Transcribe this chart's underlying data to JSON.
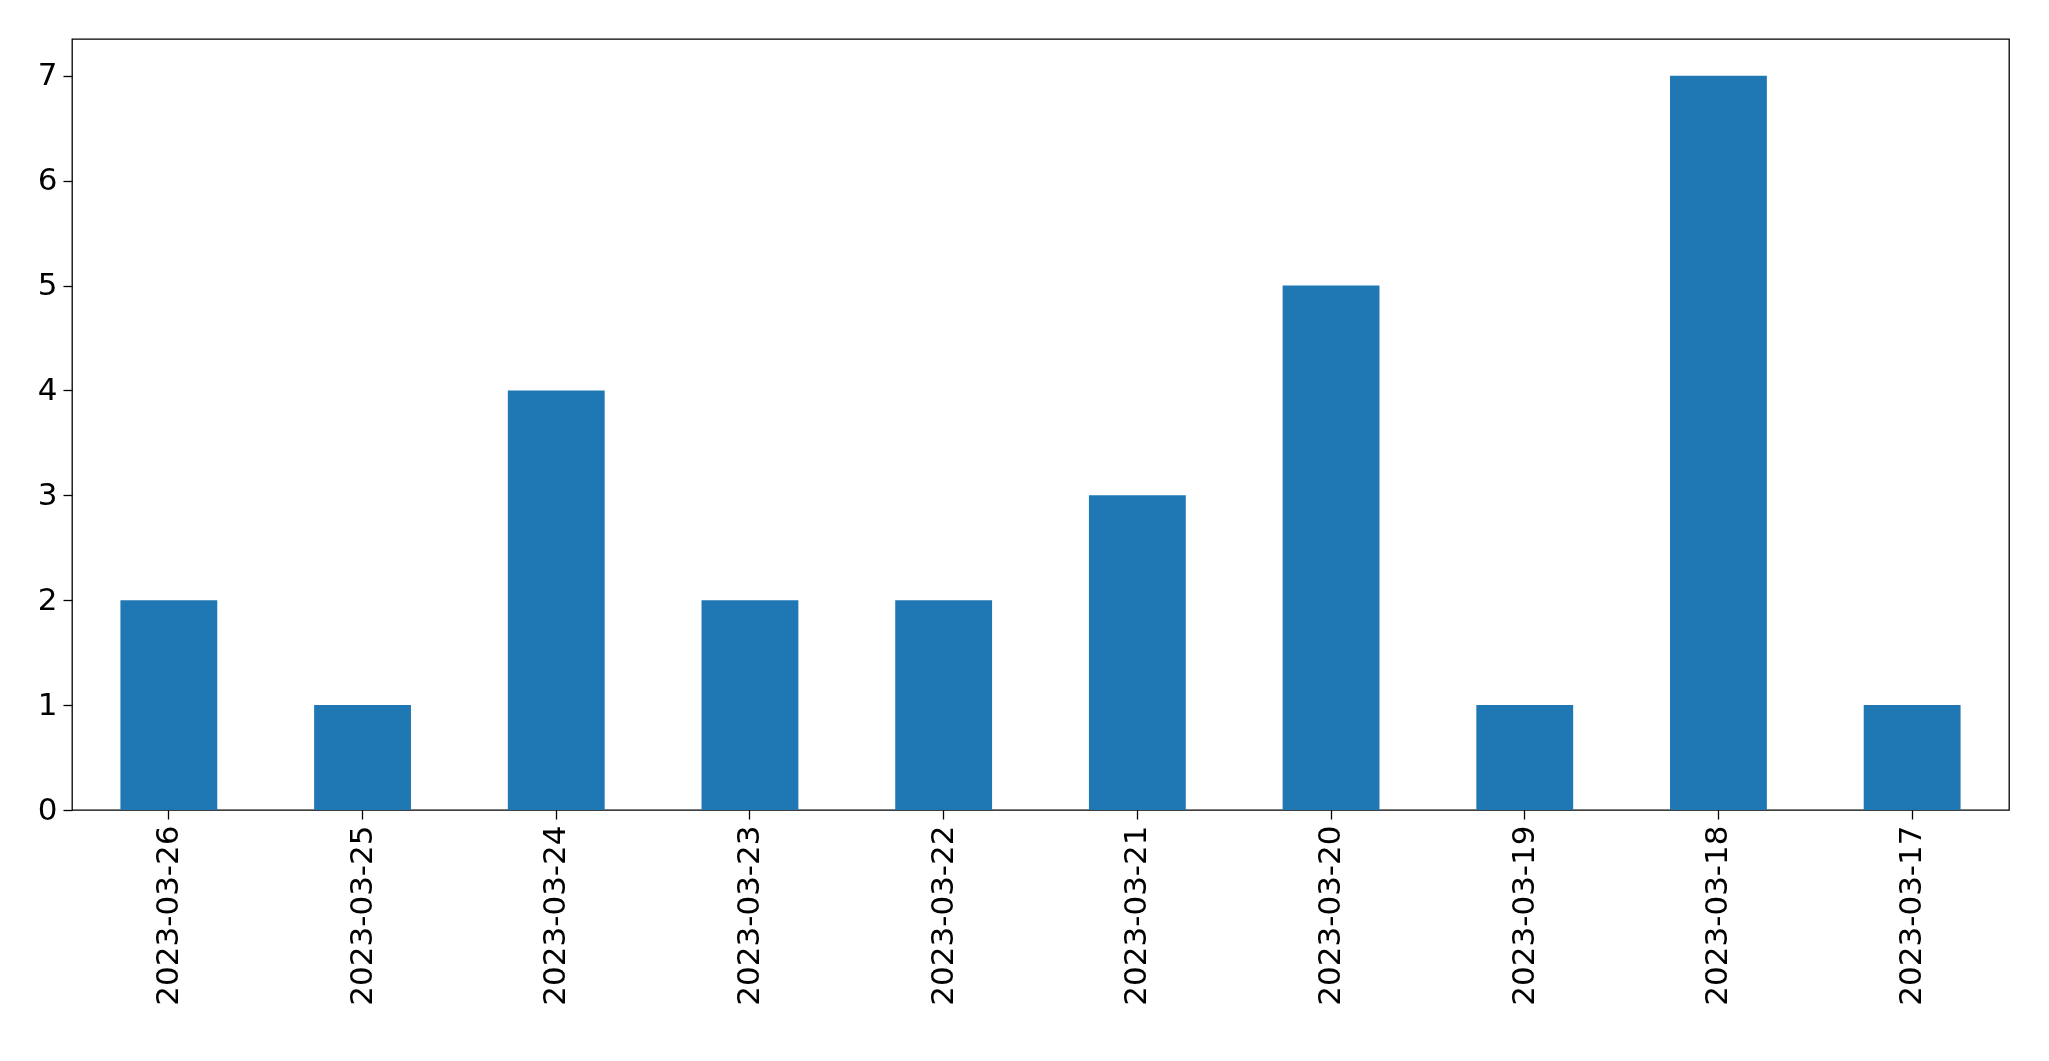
{
  "chart_data": {
    "type": "bar",
    "categories": [
      "2023-03-26",
      "2023-03-25",
      "2023-03-24",
      "2023-03-23",
      "2023-03-22",
      "2023-03-21",
      "2023-03-20",
      "2023-03-19",
      "2023-03-18",
      "2023-03-17"
    ],
    "values": [
      2,
      1,
      4,
      2,
      2,
      3,
      5,
      1,
      7,
      1
    ],
    "color": "#1f77b4",
    "ylim": [
      0,
      7.35
    ],
    "yticks": [
      0,
      1,
      2,
      3,
      4,
      5,
      6,
      7
    ],
    "grid": false
  }
}
